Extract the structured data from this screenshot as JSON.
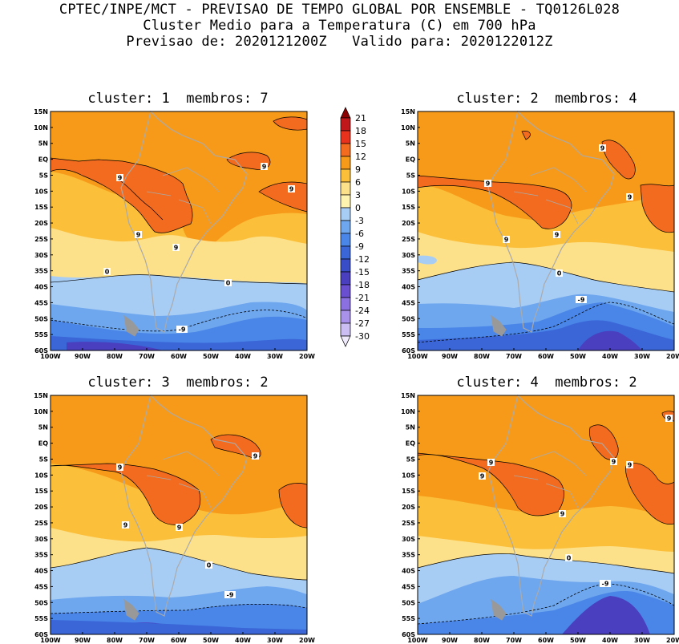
{
  "header": {
    "line1": "CPTEC/INPE/MCT - PREVISAO DE TEMPO GLOBAL POR ENSEMBLE - TQ0126L028",
    "line2": "Cluster Medio para a Temperatura (C) em 700 hPa",
    "line3": "Previsao de: 2020121200Z   Valido para: 2020122012Z"
  },
  "panels": [
    {
      "title": "cluster: 1  membros: 7"
    },
    {
      "title": "cluster: 2  membros: 4"
    },
    {
      "title": "cluster: 3  membros: 2"
    },
    {
      "title": "cluster: 4  membros: 2"
    }
  ],
  "lat_labels": [
    "15N",
    "10N",
    "5N",
    "EQ",
    "5S",
    "10S",
    "15S",
    "20S",
    "25S",
    "30S",
    "35S",
    "40S",
    "45S",
    "50S",
    "55S",
    "60S"
  ],
  "lon_labels": [
    "100W",
    "90W",
    "80W",
    "70W",
    "60W",
    "50W",
    "40W",
    "30W",
    "20W"
  ],
  "colorbar": {
    "levels": [
      "21",
      "18",
      "15",
      "12",
      "9",
      "6",
      "3",
      "0",
      "-3",
      "-6",
      "-9",
      "-12",
      "-15",
      "-18",
      "-21",
      "-24",
      "-27",
      "-30"
    ],
    "colors": [
      "#8b0000",
      "#c0181a",
      "#e8321e",
      "#f26b1e",
      "#f79a1a",
      "#fbbf3a",
      "#fde08a",
      "#fff3b0",
      "#a8cdf5",
      "#6fa7ee",
      "#4a86e8",
      "#3a66d8",
      "#3a4dc8",
      "#4a3fbf",
      "#6a4fd0",
      "#8a70e0",
      "#a892ea",
      "#cabef2",
      "#eee9fb"
    ]
  },
  "contour_labels": {
    "p1": [
      "9",
      "9",
      "9",
      "9",
      "9",
      "0",
      "0",
      "-9"
    ],
    "p2": [
      "9",
      "9",
      "9",
      "9",
      "9",
      "0",
      "-9"
    ],
    "p3": [
      "9",
      "9",
      "9",
      "9",
      "0",
      "-9"
    ],
    "p4": [
      "9",
      "9",
      "9",
      "9",
      "9",
      "9",
      "0",
      "-9"
    ]
  }
}
